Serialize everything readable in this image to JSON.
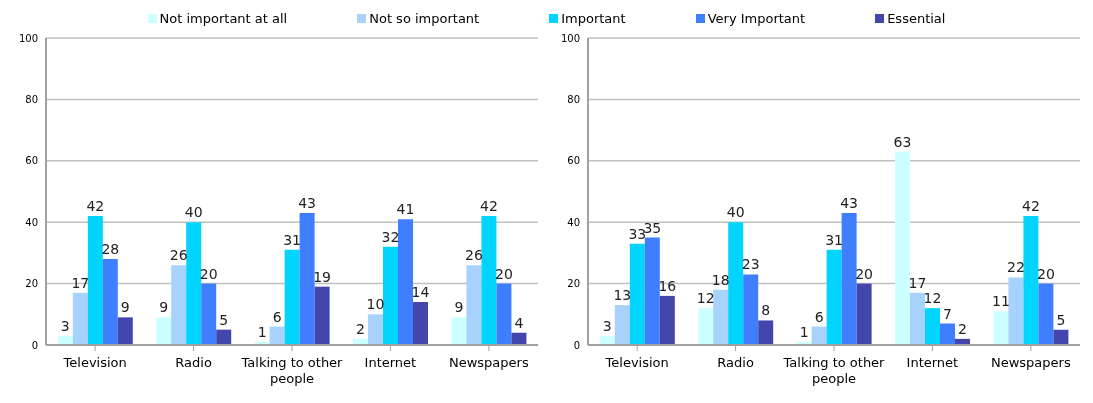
{
  "chart_data": [
    {
      "type": "bar",
      "categories": [
        "Television",
        "Radio",
        "Talking to other people",
        "Internet",
        "Newspapers"
      ],
      "ylim": [
        0,
        100
      ],
      "yticks": [
        0,
        20,
        40,
        60,
        80,
        100
      ],
      "grid": "y",
      "legend": "top",
      "data_labels": true,
      "series": [
        {
          "name": "Not important at all",
          "color": "#ccffff",
          "values": [
            3,
            9,
            1,
            2,
            9
          ]
        },
        {
          "name": "Not so important",
          "color": "#a6d2fc",
          "values": [
            17,
            26,
            6,
            10,
            26
          ]
        },
        {
          "name": "Important",
          "color": "#00d4ff",
          "values": [
            42,
            40,
            31,
            32,
            42
          ]
        },
        {
          "name": "Very Important",
          "color": "#3f7fff",
          "values": [
            28,
            20,
            43,
            41,
            20
          ]
        },
        {
          "name": "Essential",
          "color": "#4347ad",
          "values": [
            9,
            5,
            19,
            14,
            4
          ]
        }
      ]
    },
    {
      "type": "bar",
      "categories": [
        "Television",
        "Radio",
        "Talking to other people",
        "Internet",
        "Newspapers"
      ],
      "ylim": [
        0,
        100
      ],
      "yticks": [
        0,
        20,
        40,
        60,
        80,
        100
      ],
      "grid": "y",
      "data_labels": true,
      "series": [
        {
          "color": "#ccffff",
          "values": [
            3,
            12,
            1,
            63,
            11
          ]
        },
        {
          "color": "#a6d2fc",
          "values": [
            13,
            18,
            6,
            17,
            22
          ]
        },
        {
          "color": "#00d4ff",
          "values": [
            33,
            40,
            31,
            12,
            42
          ]
        },
        {
          "color": "#3f7fff",
          "values": [
            35,
            23,
            43,
            7,
            20
          ]
        },
        {
          "color": "#4347ad",
          "values": [
            16,
            8,
            20,
            2,
            5
          ]
        }
      ]
    }
  ]
}
